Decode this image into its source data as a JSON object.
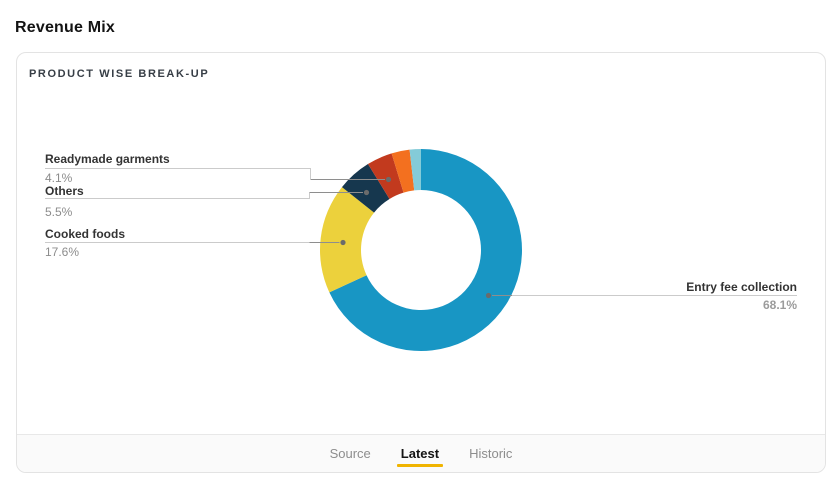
{
  "page": {
    "title": "Revenue Mix"
  },
  "card": {
    "header": "PRODUCT WISE BREAK-UP",
    "tabs": [
      {
        "label": "Source",
        "active": false
      },
      {
        "label": "Latest",
        "active": true
      },
      {
        "label": "Historic",
        "active": false
      }
    ]
  },
  "colors": {
    "tab_active_underline": "#F0B400"
  },
  "chart_data": {
    "type": "pie",
    "donut": true,
    "title": "PRODUCT WISE BREAK-UP",
    "direction": "clockwise",
    "start_angle_deg": 0,
    "inner_radius_ratio": 0.594,
    "legend": "callout-labels-with-leader-lines",
    "segments": [
      {
        "name": "Entry fee collection",
        "value": 68.1,
        "pct_label": "68.1%",
        "color": "#1896C4",
        "labeled": true,
        "label_side": "right"
      },
      {
        "name": "Cooked foods",
        "value": 17.6,
        "pct_label": "17.6%",
        "color": "#ECD13C",
        "labeled": true,
        "label_side": "left"
      },
      {
        "name": "Others",
        "value": 5.5,
        "pct_label": "5.5%",
        "color": "#16374E",
        "labeled": true,
        "label_side": "left"
      },
      {
        "name": "Readymade garments",
        "value": 4.1,
        "pct_label": "4.1%",
        "color": "#C23A1E",
        "labeled": true,
        "label_side": "left"
      },
      {
        "name": "",
        "value": 2.9,
        "pct_label": "",
        "color": "#F3701F",
        "labeled": false,
        "estimated": true
      },
      {
        "name": "",
        "value": 1.8,
        "pct_label": "",
        "color": "#84CBD8",
        "labeled": false,
        "estimated": true
      }
    ]
  }
}
